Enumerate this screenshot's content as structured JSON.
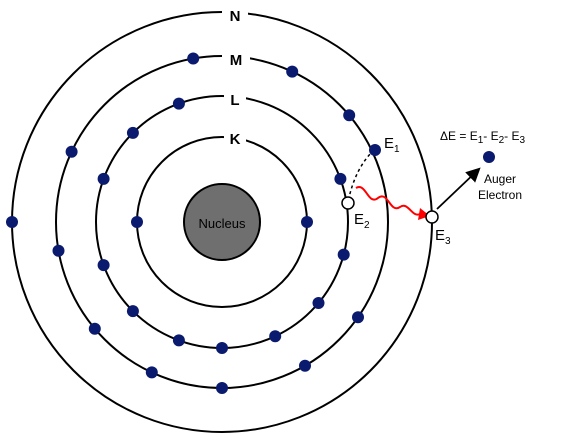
{
  "colors": {
    "electron": "#0a1a6e",
    "nucleus": "#6f6f6f",
    "vacancy": "#ffffff",
    "photon": "#ff0000",
    "orbit": "#000000",
    "background": "#ffffff"
  },
  "nucleus_label": "Nucleus",
  "shells": [
    {
      "label": "K",
      "electron_angles_deg": [
        180,
        0
      ]
    },
    {
      "label": "L",
      "electron_angles_deg": [
        110,
        135,
        160,
        200,
        225,
        250,
        270,
        295,
        320,
        345,
        20
      ]
    },
    {
      "label": "M",
      "electron_angles_deg": [
        100,
        155,
        190,
        220,
        245,
        270,
        300,
        325,
        40,
        65
      ]
    },
    {
      "label": "N",
      "electron_angles_deg": [
        180
      ]
    }
  ],
  "annotations": {
    "e1": {
      "base": "E",
      "sub": "1"
    },
    "e2": {
      "base": "E",
      "sub": "2"
    },
    "e3": {
      "base": "E",
      "sub": "3"
    },
    "equation": {
      "prefix": "ΔE = E",
      "s1": "1",
      "m1": "- E",
      "s2": "2",
      "m2": "- E",
      "s3": "3"
    },
    "auger_line1": "Auger",
    "auger_line2": "Electron"
  }
}
